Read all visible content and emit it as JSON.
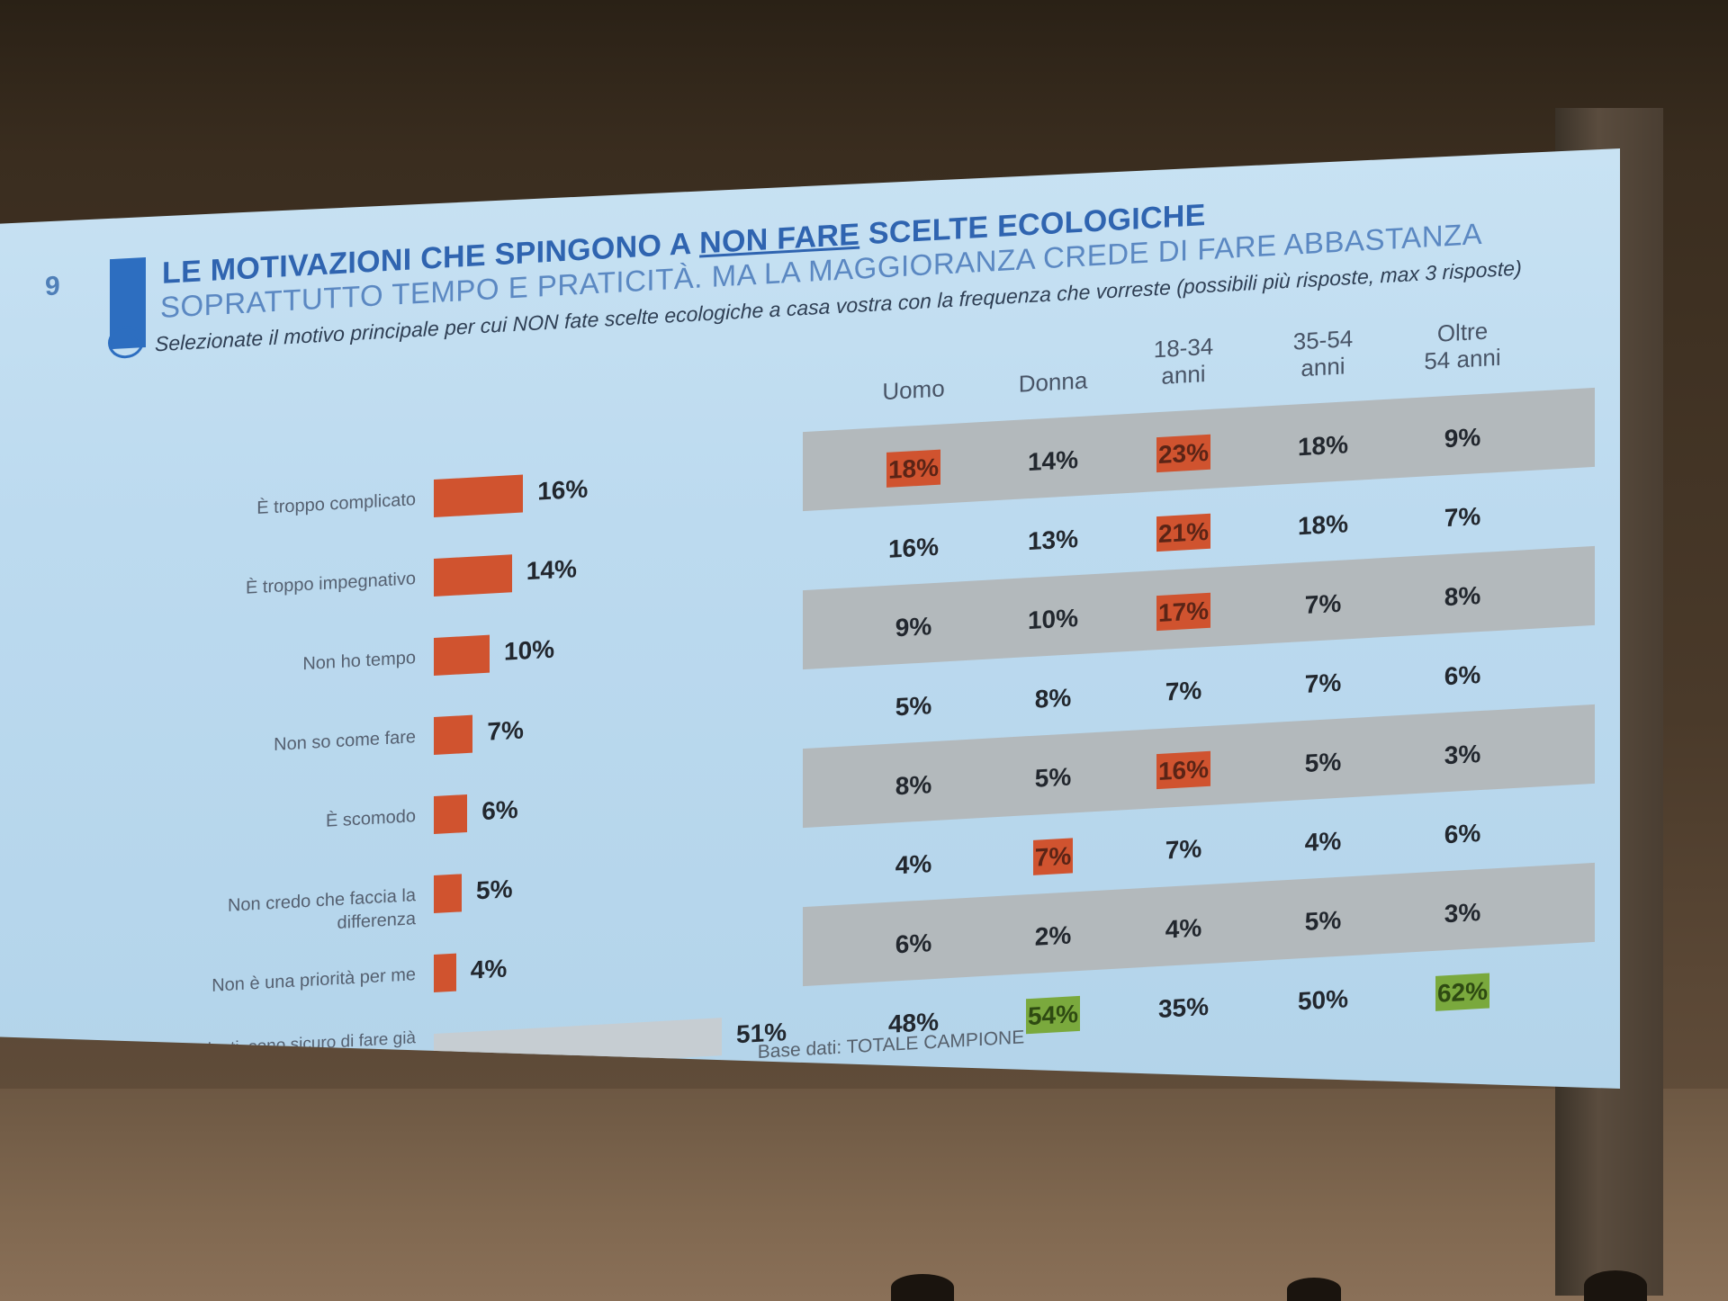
{
  "slide": {
    "number": "9",
    "title_pre": "LE MOTIVAZIONI CHE SPINGONO A ",
    "title_emph": "NON FARE",
    "title_post": " SCELTE ECOLOGICHE",
    "subtitle": "SOPRATTUTTO TEMPO E PRATICITÀ. MA LA MAGGIORANZA CREDE DI FARE ABBASTANZA",
    "question": "Selezionate il motivo principale per cui NON fate scelte ecologiche a casa vostra con la frequenza che vorreste (possibili più risposte, max 3 risposte)",
    "footer": "Base dati: TOTALE CAMPIONE"
  },
  "columns": [
    {
      "line1": "Uomo",
      "line2": ""
    },
    {
      "line1": "Donna",
      "line2": ""
    },
    {
      "line1": "18-34",
      "line2": "anni"
    },
    {
      "line1": "35-54",
      "line2": "anni"
    },
    {
      "line1": "Oltre",
      "line2": "54 anni"
    }
  ],
  "colors": {
    "highlight_red": "#d0532f",
    "highlight_green": "#7aa93d",
    "bar": "#d0532f"
  },
  "chart_data": {
    "type": "bar",
    "categories": [
      "È troppo complicato",
      "È troppo impegnativo",
      "Non ho tempo",
      "Non so come fare",
      "È scomodo",
      "Non credo che faccia la differenza",
      "Non è una priorità per me",
      "Nessuna delle precedenti, sono sicuro di fare già tutto il possibile a casa mia per il pianeta."
    ],
    "values": [
      16,
      14,
      10,
      7,
      6,
      5,
      4,
      51
    ],
    "value_labels": [
      "16%",
      "14%",
      "10%",
      "7%",
      "6%",
      "5%",
      "4%",
      "51%"
    ],
    "table": {
      "columns": [
        "Uomo",
        "Donna",
        "18-34 anni",
        "35-54 anni",
        "Oltre 54 anni"
      ],
      "rows": [
        [
          "18%",
          "14%",
          "23%",
          "18%",
          "9%"
        ],
        [
          "16%",
          "13%",
          "21%",
          "18%",
          "7%"
        ],
        [
          "9%",
          "10%",
          "17%",
          "7%",
          "8%"
        ],
        [
          "5%",
          "8%",
          "7%",
          "7%",
          "6%"
        ],
        [
          "8%",
          "5%",
          "16%",
          "5%",
          "3%"
        ],
        [
          "4%",
          "7%",
          "7%",
          "4%",
          "6%"
        ],
        [
          "6%",
          "2%",
          "4%",
          "5%",
          "3%"
        ],
        [
          "48%",
          "54%",
          "35%",
          "50%",
          "62%"
        ]
      ],
      "highlights": [
        [
          "red",
          "",
          "red",
          "",
          ""
        ],
        [
          "",
          "",
          "red",
          "",
          ""
        ],
        [
          "",
          "",
          "red",
          "",
          ""
        ],
        [
          "",
          "",
          "",
          "",
          ""
        ],
        [
          "",
          "",
          "red",
          "",
          ""
        ],
        [
          "",
          "red",
          "",
          "",
          ""
        ],
        [
          "",
          "",
          "",
          "",
          ""
        ],
        [
          "",
          "green",
          "",
          "",
          "green"
        ]
      ]
    }
  }
}
